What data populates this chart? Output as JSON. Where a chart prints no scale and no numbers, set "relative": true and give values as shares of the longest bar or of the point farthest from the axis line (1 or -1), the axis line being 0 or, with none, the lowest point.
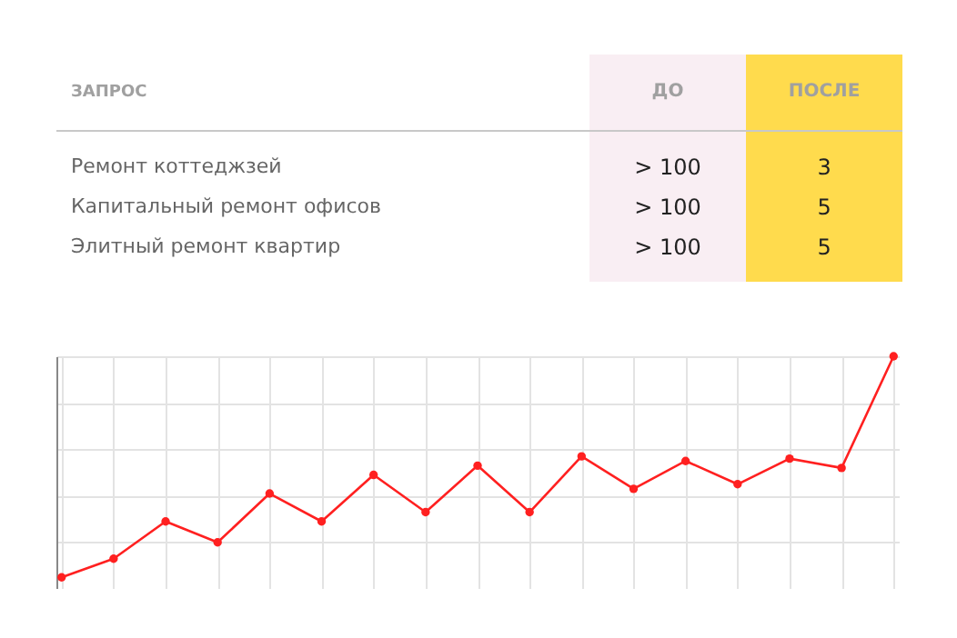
{
  "chart_data": [
    {
      "type": "other",
      "ylabel": "ЗАПРОС",
      "categories": [
        "ДО",
        "ПОСЛЕ"
      ],
      "y_categories": [
        "Ремонт коттеджзей",
        "Капитальный ремонт офисов",
        "Элитный ремонт квартир"
      ],
      "cell_labels": [
        [
          "> 100",
          "3"
        ],
        [
          "> 100",
          "5"
        ],
        [
          "> 100",
          "5"
        ]
      ],
      "colors": [
        "#f9eef3",
        "#ffdb4d"
      ]
    },
    {
      "type": "line",
      "relative": true,
      "categories": [
        null,
        null,
        null,
        null,
        null,
        null,
        null,
        null,
        null,
        null,
        null,
        null,
        null,
        null,
        null,
        null,
        null
      ],
      "series": [
        {
          "color": "#ff2020",
          "values": [
            0.05,
            0.13,
            0.29,
            0.2,
            0.41,
            0.29,
            0.49,
            0.33,
            0.53,
            0.33,
            0.57,
            0.43,
            0.55,
            0.45,
            0.56,
            0.52,
            1
          ]
        }
      ],
      "grid": true,
      "marker": "circle"
    }
  ]
}
